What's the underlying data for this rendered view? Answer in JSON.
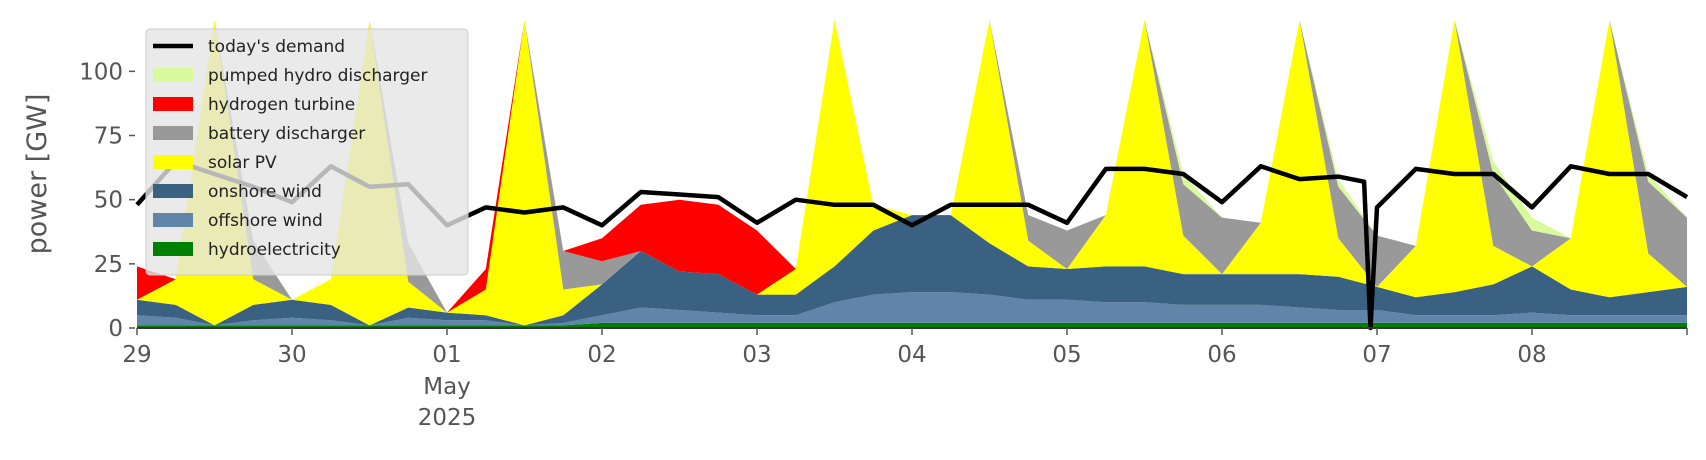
{
  "chart_data": {
    "type": "area",
    "ylabel": "power [GW]",
    "ylim": [
      0,
      120
    ],
    "x_range": [
      "2025-04-29T00:00",
      "2025-05-09T00:00"
    ],
    "grid": false,
    "legend_placement": "top-left",
    "y_ticks": [
      {
        "value": 0,
        "label": "0"
      },
      {
        "value": 25,
        "label": "25"
      },
      {
        "value": 50,
        "label": "50"
      },
      {
        "value": 75,
        "label": "75"
      },
      {
        "value": 100,
        "label": "100"
      }
    ],
    "x_ticks": [
      {
        "x": "2025-04-29",
        "label": "29",
        "sub": "",
        "sub2": ""
      },
      {
        "x": "2025-04-30",
        "label": "30",
        "sub": "",
        "sub2": ""
      },
      {
        "x": "2025-05-01",
        "label": "01",
        "sub": "May",
        "sub2": "2025"
      },
      {
        "x": "2025-05-02",
        "label": "02",
        "sub": "",
        "sub2": ""
      },
      {
        "x": "2025-05-03",
        "label": "03",
        "sub": "",
        "sub2": ""
      },
      {
        "x": "2025-05-04",
        "label": "04",
        "sub": "",
        "sub2": ""
      },
      {
        "x": "2025-05-05",
        "label": "05",
        "sub": "",
        "sub2": ""
      },
      {
        "x": "2025-05-06",
        "label": "06",
        "sub": "",
        "sub2": ""
      },
      {
        "x": "2025-05-07",
        "label": "07",
        "sub": "",
        "sub2": ""
      },
      {
        "x": "2025-05-08",
        "label": "08",
        "sub": "",
        "sub2": ""
      }
    ],
    "legend": [
      {
        "label": "today's demand",
        "color": "#000000",
        "kind": "line"
      },
      {
        "label": "pumped hydro discharger",
        "color": "#d9f99d",
        "kind": "patch"
      },
      {
        "label": "hydrogen turbine",
        "color": "#ff0000",
        "kind": "patch"
      },
      {
        "label": "battery discharger",
        "color": "#999999",
        "kind": "patch"
      },
      {
        "label": "solar PV",
        "color": "#ffff00",
        "kind": "patch"
      },
      {
        "label": "onshore wind",
        "color": "#3b6182",
        "kind": "patch"
      },
      {
        "label": "offshore wind",
        "color": "#6085a8",
        "kind": "patch"
      },
      {
        "label": "hydroelectricity",
        "color": "#008000",
        "kind": "patch"
      }
    ],
    "x": [
      "2025-04-29T00:00",
      "2025-04-29T06:00",
      "2025-04-29T12:00",
      "2025-04-29T18:00",
      "2025-04-30T00:00",
      "2025-04-30T06:00",
      "2025-04-30T12:00",
      "2025-04-30T18:00",
      "2025-05-01T00:00",
      "2025-05-01T06:00",
      "2025-05-01T12:00",
      "2025-05-01T18:00",
      "2025-05-02T00:00",
      "2025-05-02T06:00",
      "2025-05-02T12:00",
      "2025-05-02T18:00",
      "2025-05-03T00:00",
      "2025-05-03T06:00",
      "2025-05-03T12:00",
      "2025-05-03T18:00",
      "2025-05-04T00:00",
      "2025-05-04T06:00",
      "2025-05-04T12:00",
      "2025-05-04T18:00",
      "2025-05-05T00:00",
      "2025-05-05T06:00",
      "2025-05-05T12:00",
      "2025-05-05T18:00",
      "2025-05-06T00:00",
      "2025-05-06T06:00",
      "2025-05-06T12:00",
      "2025-05-06T18:00",
      "2025-05-07T00:00",
      "2025-05-07T06:00",
      "2025-05-07T12:00",
      "2025-05-07T18:00",
      "2025-05-08T00:00",
      "2025-05-08T06:00",
      "2025-05-08T12:00",
      "2025-05-08T18:00",
      "2025-05-09T00:00"
    ],
    "series": [
      {
        "name": "hydroelectricity",
        "color": "#008000",
        "values": [
          1,
          1,
          1,
          1,
          1,
          1,
          1,
          1,
          1,
          1,
          1,
          1,
          2,
          2,
          2,
          2,
          2,
          2,
          2,
          2,
          2,
          2,
          2,
          2,
          2,
          2,
          2,
          2,
          2,
          2,
          2,
          2,
          2,
          2,
          2,
          2,
          2,
          2,
          2,
          2,
          2
        ]
      },
      {
        "name": "offshore wind",
        "color": "#6085a8",
        "values": [
          4,
          3,
          0,
          2,
          3,
          2,
          0,
          3,
          2,
          2,
          0,
          1,
          3,
          6,
          5,
          4,
          3,
          3,
          8,
          11,
          12,
          12,
          11,
          9,
          9,
          8,
          8,
          7,
          7,
          7,
          6,
          5,
          5,
          3,
          3,
          3,
          4,
          3,
          3,
          3,
          3
        ]
      },
      {
        "name": "onshore wind",
        "color": "#3b6182",
        "values": [
          6,
          5,
          0,
          6,
          7,
          6,
          0,
          4,
          3,
          2,
          0,
          3,
          12,
          22,
          15,
          15,
          8,
          8,
          14,
          25,
          30,
          30,
          20,
          13,
          12,
          14,
          14,
          12,
          12,
          12,
          13,
          13,
          9,
          7,
          9,
          12,
          18,
          10,
          7,
          9,
          11
        ]
      },
      {
        "name": "solar PV",
        "color": "#ffff00",
        "values": [
          0,
          10,
          120,
          10,
          0,
          10,
          120,
          10,
          0,
          10,
          120,
          10,
          0,
          0,
          0,
          0,
          0,
          10,
          120,
          10,
          0,
          0,
          120,
          10,
          0,
          20,
          120,
          15,
          0,
          20,
          120,
          15,
          0,
          20,
          120,
          15,
          0,
          20,
          120,
          15,
          0
        ]
      },
      {
        "name": "battery discharger",
        "color": "#999999",
        "values": [
          0,
          0,
          0,
          15,
          0,
          0,
          0,
          15,
          0,
          0,
          0,
          15,
          9,
          0,
          0,
          0,
          0,
          0,
          0,
          0,
          0,
          0,
          0,
          10,
          15,
          0,
          0,
          20,
          22,
          0,
          0,
          20,
          20,
          0,
          0,
          28,
          14,
          0,
          0,
          28,
          27
        ]
      },
      {
        "name": "hydrogen turbine",
        "color": "#ff0000",
        "values": [
          13,
          0,
          0,
          0,
          0,
          0,
          0,
          0,
          0,
          8,
          0,
          0,
          9,
          18,
          28,
          27,
          25,
          0,
          0,
          0,
          0,
          0,
          0,
          0,
          0,
          0,
          0,
          0,
          0,
          0,
          0,
          0,
          0,
          0,
          0,
          0,
          0,
          0,
          0,
          0,
          0
        ]
      },
      {
        "name": "pumped hydro discharger",
        "color": "#d9f99d",
        "values": [
          0,
          0,
          0,
          0,
          0,
          0,
          0,
          0,
          0,
          0,
          0,
          0,
          0,
          0,
          0,
          0,
          0,
          0,
          0,
          0,
          0,
          0,
          0,
          0,
          0,
          0,
          0,
          4,
          0,
          0,
          0,
          3,
          0,
          0,
          0,
          5,
          5,
          0,
          0,
          3,
          0
        ]
      }
    ],
    "demand": {
      "name": "today's demand",
      "color": "#000000",
      "x": [
        "2025-04-29T00:00",
        "2025-04-29T06:00",
        "2025-04-29T12:00",
        "2025-04-29T18:00",
        "2025-04-30T00:00",
        "2025-04-30T06:00",
        "2025-04-30T12:00",
        "2025-04-30T18:00",
        "2025-05-01T00:00",
        "2025-05-01T06:00",
        "2025-05-01T12:00",
        "2025-05-01T18:00",
        "2025-05-02T00:00",
        "2025-05-02T06:00",
        "2025-05-02T12:00",
        "2025-05-02T18:00",
        "2025-05-03T00:00",
        "2025-05-03T06:00",
        "2025-05-03T12:00",
        "2025-05-03T18:00",
        "2025-05-04T00:00",
        "2025-05-04T06:00",
        "2025-05-04T12:00",
        "2025-05-04T18:00",
        "2025-05-05T00:00",
        "2025-05-05T06:00",
        "2025-05-05T12:00",
        "2025-05-05T18:00",
        "2025-05-06T00:00",
        "2025-05-06T06:00",
        "2025-05-06T12:00",
        "2025-05-06T18:00",
        "2025-05-06T22:00",
        "2025-05-06T23:00",
        "2025-05-07T00:00",
        "2025-05-07T06:00",
        "2025-05-07T12:00",
        "2025-05-07T18:00",
        "2025-05-08T00:00",
        "2025-05-08T06:00",
        "2025-05-08T12:00",
        "2025-05-08T18:00",
        "2025-05-09T00:00"
      ],
      "values": [
        48,
        65,
        60,
        55,
        49,
        63,
        55,
        56,
        40,
        47,
        45,
        47,
        40,
        53,
        52,
        51,
        41,
        50,
        48,
        48,
        40,
        48,
        48,
        48,
        41,
        62,
        62,
        60,
        49,
        63,
        58,
        59,
        57,
        0,
        47,
        62,
        60,
        60,
        47,
        63,
        60,
        60,
        51
      ]
    }
  }
}
